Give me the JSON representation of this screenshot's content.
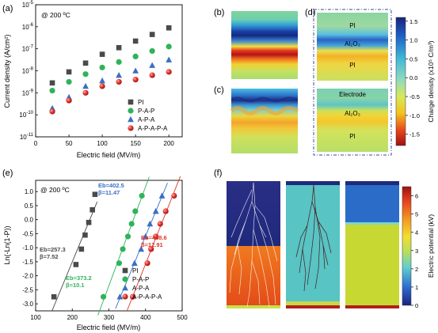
{
  "colors": {
    "pi": "#4a4a4a",
    "pap": "#2fb35a",
    "apa": "#3a6fc4",
    "apapa": "#e0342c",
    "dark_navy": "#1e2a78",
    "legend_box_border": "#3a4aa0"
  },
  "panel_labels": {
    "a": "(a)",
    "b": "(b)",
    "c": "(c)",
    "d": "(d)",
    "e": "(e)",
    "f": "(f)"
  },
  "chart_data": [
    {
      "id": "a",
      "type": "scatter",
      "annotation": "@ 200 ºC",
      "xlabel": "Electric field (MV/m)",
      "ylabel": "Current density (A/cm²)",
      "xlim": [
        0,
        220
      ],
      "x_ticks": [
        0,
        50,
        100,
        150,
        200
      ],
      "ylim_log10": [
        -11,
        -5
      ],
      "y_tick_exps": [
        "-5",
        "-6",
        "-7",
        "-8",
        "-9",
        "-10",
        "-11"
      ],
      "x": [
        25,
        50,
        75,
        100,
        125,
        150,
        175,
        200
      ],
      "series": [
        {
          "name": "PI",
          "marker": "square",
          "color": "#4a4a4a",
          "log10_values": [
            -8.55,
            -8.05,
            -7.65,
            -7.25,
            -6.95,
            -6.65,
            -6.35,
            -6.05
          ]
        },
        {
          "name": "P-A-P",
          "marker": "circle",
          "color": "#2fb35a",
          "log10_values": [
            -8.9,
            -8.5,
            -8.15,
            -7.85,
            -7.6,
            -7.35,
            -7.1,
            -6.9
          ]
        },
        {
          "name": "A-P-A",
          "marker": "triangle",
          "color": "#3a6fc4",
          "log10_values": [
            -9.7,
            -9.2,
            -8.7,
            -8.45,
            -8.2,
            -8.0,
            -7.75,
            -7.5
          ]
        },
        {
          "name": "A-P-A-P-A",
          "marker": "ball",
          "color": "#e0342c",
          "log10_values": [
            -9.85,
            -9.35,
            -9.0,
            -8.7,
            -8.5,
            -8.4,
            -8.2,
            -8.05
          ]
        }
      ]
    },
    {
      "id": "e",
      "type": "scatter",
      "annotation": "@ 200 ºC",
      "xlabel": "Electric field (MV/m)",
      "ylabel": "Ln(-Ln(1-P))",
      "xlim": [
        100,
        500
      ],
      "x_ticks": [
        100,
        200,
        300,
        400,
        500
      ],
      "ylim": [
        -3.25,
        1.4
      ],
      "y_ticks": [
        "1.0",
        "0.5",
        "0.0",
        "-0.5",
        "-1.0",
        "-1.5",
        "-2.0",
        "-2.5",
        "-3.0"
      ],
      "series": [
        {
          "name": "PI",
          "marker": "square",
          "color": "#4a4a4a",
          "x": [
            150,
            210,
            225,
            235,
            245,
            255,
            262
          ],
          "y": [
            -2.75,
            -1.6,
            -1.05,
            -0.55,
            -0.1,
            0.35,
            0.9
          ],
          "fit_x": [
            145,
            268
          ]
        },
        {
          "name": "P-A-P",
          "marker": "circle",
          "color": "#2fb35a",
          "x": [
            285,
            328,
            338,
            352,
            362,
            372,
            390
          ],
          "y": [
            -2.75,
            -1.55,
            -1.05,
            -0.6,
            -0.15,
            0.3,
            0.85
          ],
          "fit_x": [
            270,
            410
          ]
        },
        {
          "name": "A-P-A",
          "marker": "triangle",
          "color": "#3a6fc4",
          "x": [
            330,
            370,
            388,
            400,
            412,
            428,
            445
          ],
          "y": [
            -2.75,
            -1.55,
            -1.05,
            -0.6,
            -0.15,
            0.3,
            0.85
          ],
          "fit_x": [
            318,
            460
          ]
        },
        {
          "name": "A-P-A-P-A",
          "marker": "ball",
          "color": "#e0342c",
          "x": [
            365,
            405,
            415,
            428,
            440,
            455,
            478
          ],
          "y": [
            -2.75,
            -1.55,
            -1.05,
            -0.6,
            -0.15,
            0.3,
            0.85
          ],
          "fit_x": [
            350,
            495
          ]
        }
      ],
      "weibull_labels": [
        {
          "series": "PI",
          "line1": "Eb=257.3",
          "line2": "β=7.52"
        },
        {
          "series": "P-A-P",
          "line1": "Eb=373.2",
          "line2": "β=10.1"
        },
        {
          "series": "A-P-A",
          "line1": "Eb=402.5",
          "line2": "β=11.47"
        },
        {
          "series": "A-P-A-P-A",
          "line1": "Eb=438.6",
          "line2": "β=12.91"
        }
      ]
    },
    {
      "id": "bd-colorbar",
      "type": "heatmap",
      "ylabel": "Charge density (x10⁵ C/m³)",
      "range": [
        -1.8,
        1.6
      ],
      "ticks": [
        "1.5",
        "1.0",
        "0.5",
        "0.0",
        "-0.5",
        "-1.0",
        "-1.5"
      ],
      "layer_labels": {
        "top": "PI",
        "middle": "Al₂O₃",
        "bottom": "PI",
        "electrode": "Electrode",
        "c_middle": "Al₂O₃",
        "c_bottom": "PI"
      }
    },
    {
      "id": "f-colorbar",
      "type": "heatmap",
      "ylabel": "Electric potential (kV)",
      "range": [
        0,
        6.5
      ],
      "ticks": [
        "6",
        "5",
        "4",
        "3",
        "2",
        "1",
        "0"
      ]
    }
  ]
}
